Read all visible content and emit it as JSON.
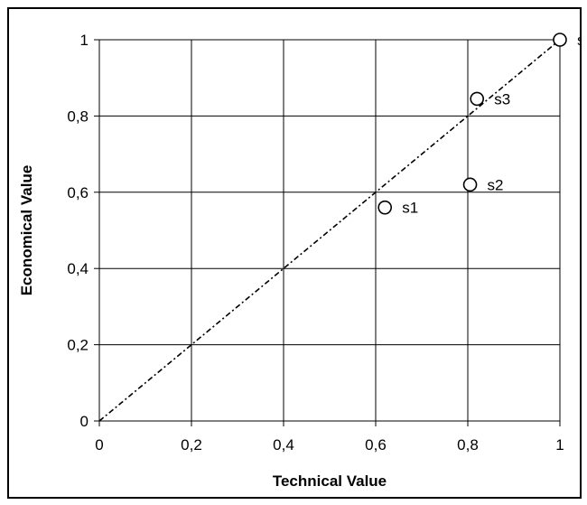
{
  "chart_data": {
    "type": "scatter",
    "xlabel": "Technical Value",
    "ylabel": "Economical Value",
    "xlim": [
      0,
      1
    ],
    "ylim": [
      0,
      1
    ],
    "xticks": [
      0,
      0.2,
      0.4,
      0.6,
      0.8,
      1
    ],
    "yticks": [
      0,
      0.2,
      0.4,
      0.6,
      0.8,
      1
    ],
    "xtick_labels": [
      "0",
      "0,2",
      "0,4",
      "0,6",
      "0,8",
      "1"
    ],
    "ytick_labels": [
      "0",
      "0,2",
      "0,4",
      "0,6",
      "0,8",
      "1"
    ],
    "grid": true,
    "points": [
      {
        "label": "s1",
        "x": 0.62,
        "y": 0.56
      },
      {
        "label": "s2",
        "x": 0.805,
        "y": 0.62
      },
      {
        "label": "s3",
        "x": 0.82,
        "y": 0.845
      },
      {
        "label": "s",
        "x": 1.0,
        "y": 1.0
      }
    ],
    "reference_line": {
      "style": "dash-dot",
      "from": [
        0,
        0
      ],
      "to": [
        1,
        1
      ]
    },
    "marker": "open-circle",
    "colors": {
      "marker_stroke": "#000000",
      "grid": "#000000",
      "line": "#000000"
    }
  }
}
